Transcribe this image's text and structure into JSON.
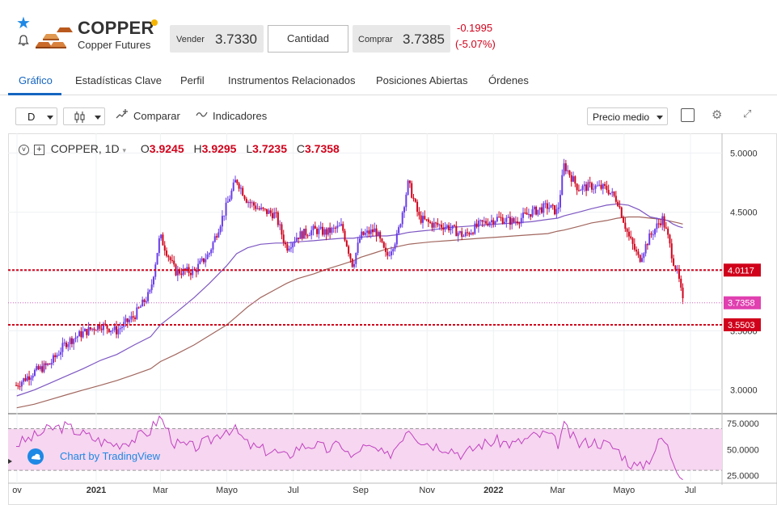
{
  "header": {
    "title": "COPPER",
    "subtitle": "Copper Futures",
    "sell_label": "Vender",
    "sell_price": "3.7330",
    "quantity_label": "Cantidad",
    "buy_label": "Comprar",
    "buy_price": "3.7385",
    "change_abs": "-0.1995",
    "change_pct": "(-5.07%)"
  },
  "tabs": [
    "Gráfico",
    "Estadísticas Clave",
    "Perfil",
    "Instrumentos Relacionados",
    "Posiciones Abiertas",
    "Órdenes"
  ],
  "toolbar": {
    "interval": "D",
    "compare_label": "Comparar",
    "indicators_label": "Indicadores",
    "price_mode": "Precio medio"
  },
  "legend": {
    "symbol": "COPPER, 1D",
    "o_label": "O",
    "o": "3.9245",
    "h_label": "H",
    "h": "3.9295",
    "l_label": "L",
    "l": "3.7235",
    "c_label": "C",
    "c": "3.7358"
  },
  "tradingview_label": "Chart by TradingView",
  "colors": {
    "accent": "#1565c0",
    "down": "#d0021b",
    "up": "#6a3de8",
    "rsi": "#c040c0",
    "ma_fast": "#7e57c2",
    "ma_slow": "#a1665e"
  },
  "chart_data": [
    {
      "type": "line",
      "title": "",
      "x": [
        "2020-10-20",
        "2020-11-05",
        "2020-11-20",
        "2020-12-05",
        "2020-12-20",
        "2021-01-05",
        "2021-01-20",
        "2021-02-05",
        "2021-02-20",
        "2021-03-01",
        "2021-03-15",
        "2021-04-01",
        "2021-04-15",
        "2021-05-01",
        "2021-05-10",
        "2021-05-20",
        "2021-06-01",
        "2021-06-15",
        "2021-06-25",
        "2021-07-05",
        "2021-07-20",
        "2021-08-01",
        "2021-08-15",
        "2021-08-25",
        "2021-09-01",
        "2021-09-15",
        "2021-09-25",
        "2021-10-05",
        "2021-10-15",
        "2021-10-25",
        "2021-11-05",
        "2021-11-20",
        "2021-12-05",
        "2021-12-20",
        "2022-01-05",
        "2022-01-20",
        "2022-02-05",
        "2022-02-20",
        "2022-03-01",
        "2022-03-07",
        "2022-03-20",
        "2022-04-01",
        "2022-04-15",
        "2022-04-25",
        "2022-05-05",
        "2022-05-15",
        "2022-05-25",
        "2022-06-05",
        "2022-06-10",
        "2022-06-15",
        "2022-06-20",
        "2022-06-24"
      ],
      "series": [
        {
          "values": [
            3.04,
            3.15,
            3.22,
            3.4,
            3.48,
            3.55,
            3.5,
            3.62,
            3.82,
            4.3,
            4.0,
            4.0,
            4.15,
            4.55,
            4.78,
            4.6,
            4.52,
            4.48,
            4.2,
            4.3,
            4.35,
            4.33,
            4.38,
            4.05,
            4.3,
            4.35,
            4.12,
            4.3,
            4.75,
            4.45,
            4.4,
            4.38,
            4.3,
            4.4,
            4.45,
            4.42,
            4.5,
            4.55,
            4.5,
            4.9,
            4.7,
            4.72,
            4.7,
            4.6,
            4.3,
            4.1,
            4.3,
            4.45,
            4.3,
            4.1,
            3.95,
            3.74
          ]
        },
        {
          "values": [
            2.95,
            3.0,
            3.06,
            3.12,
            3.18,
            3.25,
            3.3,
            3.38,
            3.45,
            3.55,
            3.65,
            3.78,
            3.9,
            4.05,
            4.15,
            4.2,
            4.23,
            4.24,
            4.24,
            4.25,
            4.26,
            4.27,
            4.28,
            4.28,
            4.29,
            4.3,
            4.3,
            4.31,
            4.33,
            4.34,
            4.35,
            4.37,
            4.38,
            4.39,
            4.4,
            4.41,
            4.42,
            4.44,
            4.45,
            4.47,
            4.5,
            4.53,
            4.56,
            4.57,
            4.56,
            4.52,
            4.46,
            4.44,
            4.43,
            4.4,
            4.38,
            4.37
          ]
        },
        {
          "values": [
            2.85,
            2.88,
            2.92,
            2.96,
            3.0,
            3.04,
            3.08,
            3.13,
            3.18,
            3.24,
            3.3,
            3.38,
            3.46,
            3.55,
            3.62,
            3.7,
            3.78,
            3.85,
            3.9,
            3.94,
            3.98,
            4.02,
            4.06,
            4.09,
            4.12,
            4.16,
            4.19,
            4.21,
            4.23,
            4.24,
            4.25,
            4.26,
            4.27,
            4.28,
            4.29,
            4.3,
            4.31,
            4.32,
            4.34,
            4.35,
            4.38,
            4.41,
            4.43,
            4.45,
            4.46,
            4.46,
            4.45,
            4.44,
            4.43,
            4.42,
            4.41,
            4.4
          ]
        }
      ],
      "yticks": [
        "3.0000",
        "3.5000",
        "4.0000",
        "4.5000",
        "5.0000"
      ],
      "ylim": [
        2.8,
        5.05
      ],
      "xticks": [
        "ov",
        "2021",
        "Mar",
        "Mayo",
        "Jul",
        "Sep",
        "Nov",
        "2022",
        "Mar",
        "Mayo",
        "Jul"
      ],
      "hlines": [
        {
          "label": "4.0117",
          "value": 4.0117
        },
        {
          "label": "3.5503",
          "value": 3.5503
        }
      ],
      "last_price_label": "3.7358",
      "last_price": 3.7358
    },
    {
      "type": "line",
      "title": "",
      "x": [
        "2020-10-20",
        "2020-11-05",
        "2020-11-20",
        "2020-12-05",
        "2020-12-20",
        "2021-01-05",
        "2021-01-20",
        "2021-02-05",
        "2021-02-20",
        "2021-03-01",
        "2021-03-15",
        "2021-04-01",
        "2021-04-15",
        "2021-05-01",
        "2021-05-10",
        "2021-05-20",
        "2021-06-01",
        "2021-06-15",
        "2021-06-25",
        "2021-07-05",
        "2021-07-20",
        "2021-08-01",
        "2021-08-15",
        "2021-08-25",
        "2021-09-01",
        "2021-09-15",
        "2021-09-25",
        "2021-10-05",
        "2021-10-15",
        "2021-10-25",
        "2021-11-05",
        "2021-11-20",
        "2021-12-05",
        "2021-12-20",
        "2022-01-05",
        "2022-01-20",
        "2022-02-05",
        "2022-02-20",
        "2022-03-01",
        "2022-03-07",
        "2022-03-20",
        "2022-04-01",
        "2022-04-15",
        "2022-04-25",
        "2022-05-05",
        "2022-05-15",
        "2022-05-25",
        "2022-06-05",
        "2022-06-10",
        "2022-06-15",
        "2022-06-20",
        "2022-06-24"
      ],
      "series": [
        {
          "values": [
            55,
            62,
            70,
            72,
            65,
            58,
            55,
            60,
            68,
            82,
            55,
            52,
            58,
            70,
            68,
            55,
            50,
            48,
            42,
            52,
            55,
            50,
            55,
            40,
            52,
            50,
            42,
            55,
            72,
            60,
            55,
            52,
            45,
            55,
            58,
            55,
            62,
            65,
            55,
            72,
            55,
            58,
            55,
            50,
            38,
            32,
            42,
            62,
            52,
            40,
            30,
            25
          ]
        }
      ],
      "yticks": [
        "25.0000",
        "50.0000",
        "75.0000"
      ],
      "ylim": [
        20,
        82
      ],
      "band": [
        30,
        70
      ]
    }
  ]
}
